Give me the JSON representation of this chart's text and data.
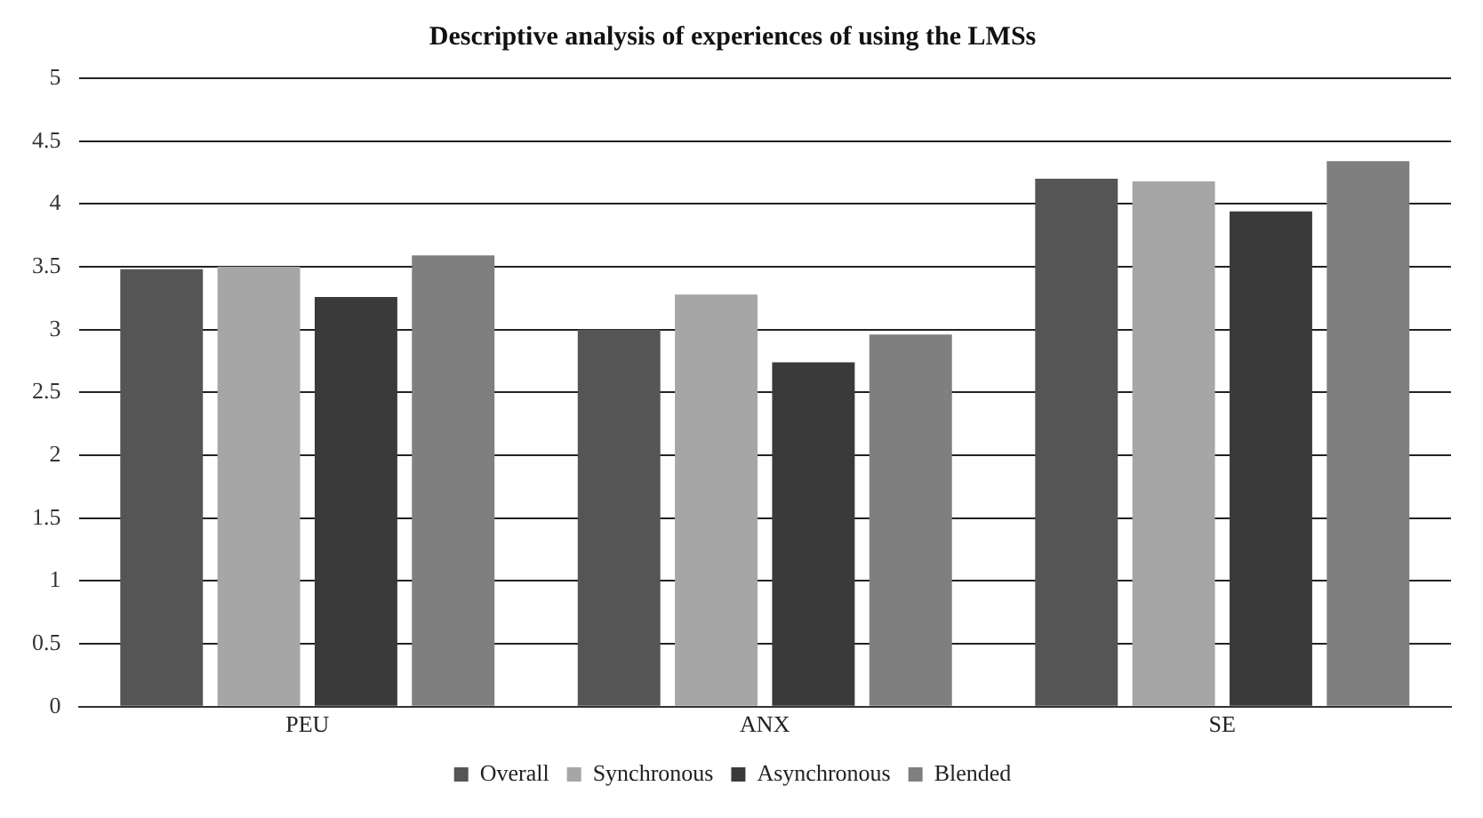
{
  "chart_data": {
    "type": "bar",
    "title": "Descriptive analysis of experiences of using the LMSs",
    "categories": [
      "PEU",
      "ANX",
      "SE"
    ],
    "series": [
      {
        "name": "Overall",
        "color": "#555555",
        "values": [
          3.48,
          3.0,
          4.2
        ]
      },
      {
        "name": "Synchronous",
        "color": "#a6a6a6",
        "values": [
          3.5,
          3.28,
          4.18
        ]
      },
      {
        "name": "Asynchronous",
        "color": "#3a3a3a",
        "values": [
          3.26,
          2.74,
          3.94
        ]
      },
      {
        "name": "Blended",
        "color": "#7f7f7f",
        "values": [
          3.59,
          2.96,
          4.34
        ]
      }
    ],
    "ylim": [
      0,
      5
    ],
    "yticks": [
      0,
      0.5,
      1,
      1.5,
      2,
      2.5,
      3,
      3.5,
      4,
      4.5,
      5
    ],
    "grid": "y",
    "legend": "bottom"
  }
}
